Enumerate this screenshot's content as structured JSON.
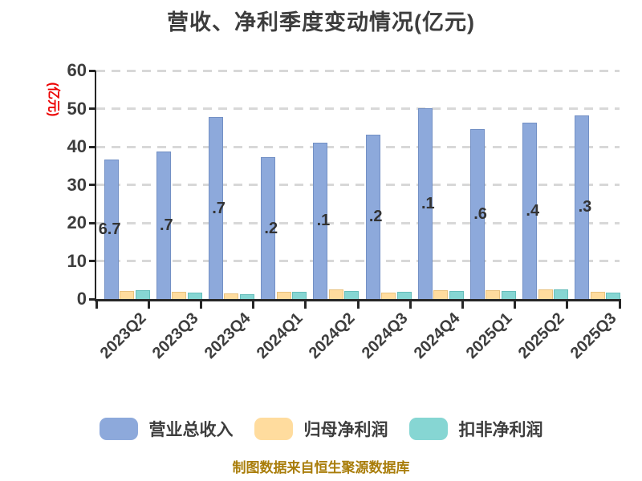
{
  "title": "营收、净利季度变动情况(亿元)",
  "y_axis": {
    "label": "(亿元)",
    "ticks": [
      0,
      10,
      20,
      30,
      40,
      50,
      60
    ],
    "max": 60
  },
  "chart_data": {
    "type": "bar",
    "title": "营收、净利季度变动情况(亿元)",
    "categories": [
      "2023Q2",
      "2023Q3",
      "2023Q4",
      "2024Q1",
      "2024Q2",
      "2024Q3",
      "2024Q4",
      "2025Q1",
      "2025Q2",
      "2025Q3"
    ],
    "series": [
      {
        "name": "营业总收入",
        "color": "#8DA9DB",
        "border": "#7390C5",
        "values": [
          36.7,
          38.7,
          47.7,
          37.2,
          41.1,
          43.2,
          50.1,
          44.6,
          46.4,
          48.3
        ]
      },
      {
        "name": "归母净利润",
        "color": "#FFDC9E",
        "border": "#E8C27F",
        "values": [
          2.2,
          2.0,
          1.5,
          1.9,
          2.6,
          1.7,
          2.3,
          2.3,
          2.6,
          2.0
        ]
      },
      {
        "name": "扣非净利润",
        "color": "#86D6D3",
        "border": "#66BDBA",
        "values": [
          2.4,
          1.7,
          1.2,
          1.8,
          2.2,
          1.9,
          2.2,
          2.1,
          2.6,
          1.7
        ]
      }
    ],
    "visible_bar_labels": [
      "6.7",
      ".7",
      ".7",
      ".2",
      ".1",
      ".2",
      ".1",
      ".6",
      ".4",
      ".3"
    ],
    "ylabel": "(亿元)",
    "xlabel": "",
    "ylim": [
      0,
      60
    ],
    "grid": "horizontal dashed",
    "legend_position": "bottom"
  },
  "legend": {
    "items": [
      {
        "label": "营业总收入",
        "color": "#8DA9DB"
      },
      {
        "label": "归母净利润",
        "color": "#FFDC9E"
      },
      {
        "label": "扣非净利润",
        "color": "#86D6D3"
      }
    ]
  },
  "footer": "制图数据来自恒生聚源数据库",
  "colors": {
    "text": "#3D3D3D",
    "axis": "#262626",
    "grid": "#D8D8D8",
    "ylabel_red": "#EC0000",
    "footer_gold": "#A97D0A"
  }
}
